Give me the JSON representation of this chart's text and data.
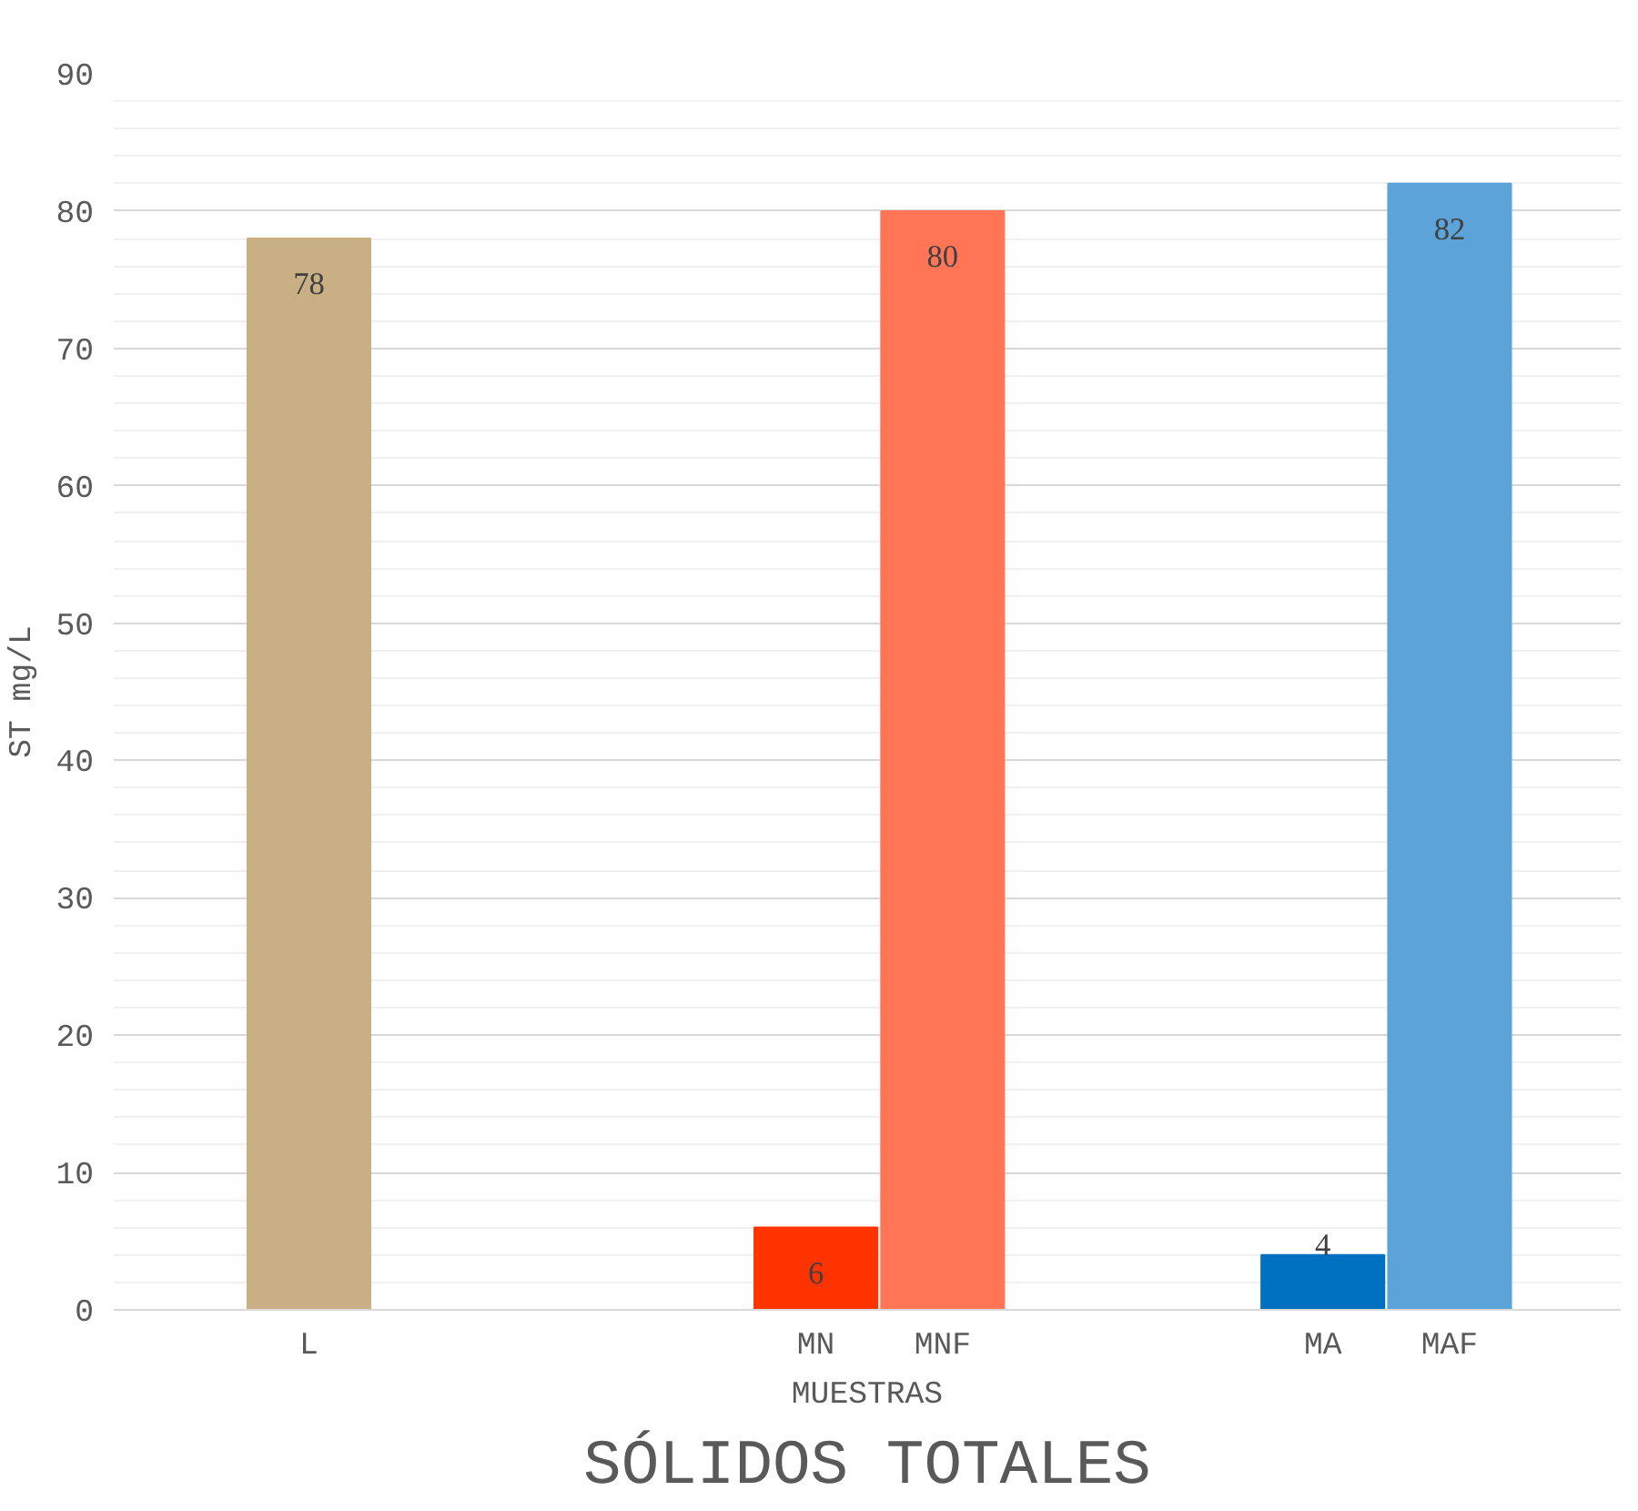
{
  "chart_data": {
    "type": "bar",
    "title": "SÓLIDOS TOTALES",
    "xlabel": "MUESTRAS",
    "ylabel": "ST mg/L",
    "categories": [
      "L",
      null,
      null,
      null,
      "MN",
      "MNF",
      null,
      null,
      "MA",
      "MAF"
    ],
    "values": [
      78,
      null,
      null,
      null,
      6,
      80,
      null,
      null,
      4,
      82
    ],
    "colors": [
      "#c9b084",
      null,
      null,
      null,
      "#ff3300",
      "#ff7555",
      null,
      null,
      "#0070c0",
      "#5ba3d9"
    ],
    "ylim": [
      0,
      90
    ],
    "yticks": [
      0,
      10,
      20,
      30,
      40,
      50,
      60,
      70,
      80,
      90
    ],
    "grid": "y",
    "data_labels": true
  }
}
